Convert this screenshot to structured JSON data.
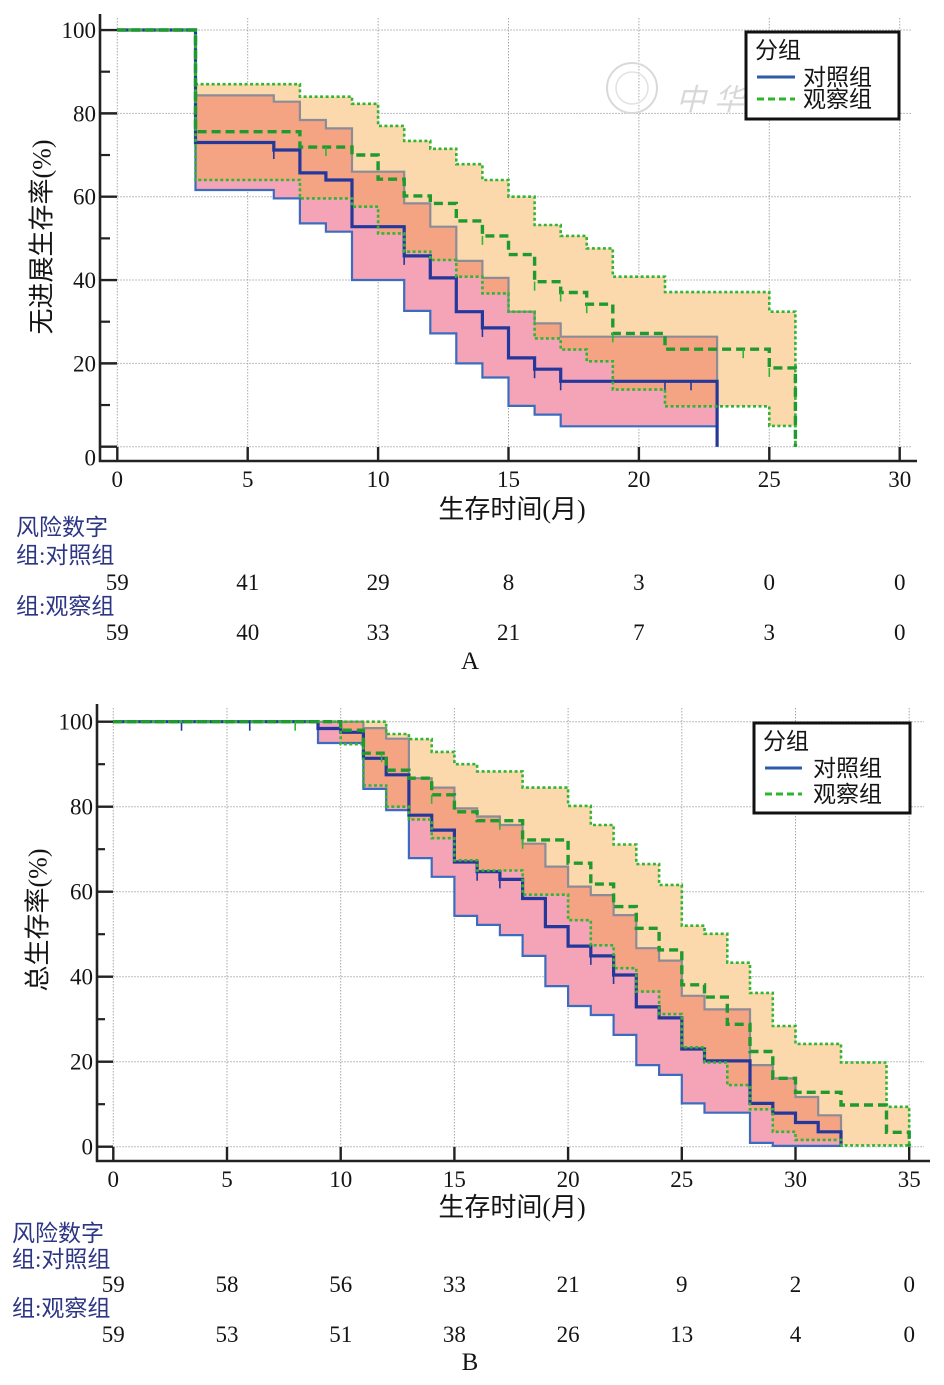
{
  "figure": {
    "watermark": "中华医"
  },
  "colors": {
    "control_median": "#24389c",
    "control_upper": "#8c8c96",
    "control_lower": "#3b6cc0",
    "observation_median": "#1f9a2e",
    "observation_ci": "#33b533",
    "control_band": "#f5a3b7",
    "observation_band": "#fcd9ad",
    "overlap_band": "#f4a483",
    "grid": "#a8a8a8",
    "axis": "#222222",
    "risk_label": "#2d3585"
  },
  "chart_data": [
    {
      "panel_label": "A",
      "type": "line",
      "subtype": "kaplan-meier step curves with confidence bands",
      "ylabel": "无进展生存率(%)",
      "xlabel": "生存时间(月)",
      "xlim": [
        0,
        30
      ],
      "ylim": [
        0,
        100
      ],
      "xticks": [
        0,
        5,
        10,
        15,
        20,
        25,
        30
      ],
      "yticks": [
        0,
        20,
        40,
        60,
        80,
        100
      ],
      "grid": true,
      "legend": {
        "title": "分组",
        "position": "top-right",
        "entries": [
          {
            "label": "对照组",
            "style": "solid"
          },
          {
            "label": "观察组",
            "style": "dashed"
          }
        ]
      },
      "series": [
        {
          "name": "对照组",
          "median": [
            [
              0,
              100
            ],
            [
              3,
              73.0
            ],
            [
              6,
              71.2
            ],
            [
              7,
              65.7
            ],
            [
              8,
              64.0
            ],
            [
              9,
              52.8
            ],
            [
              11,
              45.8
            ],
            [
              12,
              40.5
            ],
            [
              13,
              32.4
            ],
            [
              14,
              28.5
            ],
            [
              15,
              21.3
            ],
            [
              16,
              18.6
            ],
            [
              17,
              15.7
            ],
            [
              23,
              0
            ]
          ],
          "upper": [
            [
              0,
              100
            ],
            [
              3,
              84.3
            ],
            [
              6,
              82.8
            ],
            [
              7,
              78.4
            ],
            [
              8,
              76.4
            ],
            [
              9,
              66.0
            ],
            [
              11,
              58.4
            ],
            [
              12,
              52.8
            ],
            [
              13,
              44.6
            ],
            [
              14,
              40.5
            ],
            [
              15,
              32.4
            ],
            [
              16,
              29.6
            ],
            [
              17,
              26.4
            ],
            [
              23,
              15.7
            ]
          ],
          "lower": [
            [
              0,
              100
            ],
            [
              3,
              61.6
            ],
            [
              6,
              59.6
            ],
            [
              7,
              53.6
            ],
            [
              8,
              51.6
            ],
            [
              9,
              40.0
            ],
            [
              11,
              32.6
            ],
            [
              12,
              27.2
            ],
            [
              13,
              20.0
            ],
            [
              14,
              16.6
            ],
            [
              15,
              9.8
            ],
            [
              16,
              7.7
            ],
            [
              17,
              4.9
            ],
            [
              23,
              0
            ]
          ],
          "censored": [
            6,
            11,
            14,
            16,
            17,
            21,
            22
          ]
        },
        {
          "name": "观察组",
          "median": [
            [
              0,
              100
            ],
            [
              3,
              75.6
            ],
            [
              7,
              71.9
            ],
            [
              9,
              70.0
            ],
            [
              10,
              64.2
            ],
            [
              11,
              60.2
            ],
            [
              12,
              58.4
            ],
            [
              13,
              54.2
            ],
            [
              14,
              50.6
            ],
            [
              15,
              46.1
            ],
            [
              16,
              39.6
            ],
            [
              17,
              37.0
            ],
            [
              18,
              34.2
            ],
            [
              19,
              27.2
            ],
            [
              21,
              23.4
            ],
            [
              25,
              18.9
            ],
            [
              26,
              0
            ]
          ],
          "upper": [
            [
              0,
              100
            ],
            [
              3,
              87.0
            ],
            [
              7,
              84.0
            ],
            [
              9,
              82.3
            ],
            [
              10,
              77.0
            ],
            [
              11,
              73.4
            ],
            [
              12,
              71.5
            ],
            [
              13,
              67.8
            ],
            [
              14,
              64.0
            ],
            [
              15,
              60.0
            ],
            [
              16,
              53.2
            ],
            [
              17,
              50.6
            ],
            [
              18,
              47.6
            ],
            [
              19,
              40.8
            ],
            [
              21,
              37.1
            ],
            [
              25,
              32.4
            ],
            [
              26,
              0
            ]
          ],
          "lower": [
            [
              0,
              100
            ],
            [
              3,
              64.0
            ],
            [
              7,
              59.6
            ],
            [
              9,
              57.6
            ],
            [
              10,
              51.2
            ],
            [
              11,
              46.8
            ],
            [
              12,
              44.8
            ],
            [
              13,
              40.8
            ],
            [
              14,
              36.8
            ],
            [
              15,
              32.4
            ],
            [
              16,
              26.0
            ],
            [
              17,
              23.3
            ],
            [
              18,
              20.5
            ],
            [
              19,
              13.7
            ],
            [
              21,
              9.7
            ],
            [
              25,
              5.0
            ],
            [
              26,
              0
            ]
          ],
          "censored": [
            8,
            14,
            16,
            17,
            18,
            19,
            24,
            25
          ]
        }
      ],
      "risk_table": {
        "title": "风险数字",
        "rows": [
          {
            "label": "组:对照组",
            "values": [
              59,
              41,
              29,
              8,
              3,
              0,
              0
            ]
          },
          {
            "label": "组:观察组",
            "values": [
              59,
              40,
              33,
              21,
              7,
              3,
              0
            ]
          }
        ]
      }
    },
    {
      "panel_label": "B",
      "type": "line",
      "subtype": "kaplan-meier step curves with confidence bands",
      "ylabel": "总生存率(%)",
      "xlabel": "生存时间(月)",
      "xlim": [
        0,
        35
      ],
      "ylim": [
        0,
        100
      ],
      "xticks": [
        0,
        5,
        10,
        15,
        20,
        25,
        30,
        35
      ],
      "yticks": [
        0,
        20,
        40,
        60,
        80,
        100
      ],
      "grid": true,
      "legend": {
        "title": "分组",
        "position": "top-right",
        "entries": [
          {
            "label": "对照组",
            "style": "solid"
          },
          {
            "label": "观察组",
            "style": "dashed"
          }
        ]
      },
      "series": [
        {
          "name": "对照组",
          "median": [
            [
              0,
              100
            ],
            [
              9,
              98.4
            ],
            [
              10,
              97.5
            ],
            [
              11,
              91.4
            ],
            [
              12,
              87.5
            ],
            [
              13,
              78.0
            ],
            [
              14,
              74.5
            ],
            [
              15,
              67.0
            ],
            [
              16,
              64.7
            ],
            [
              17,
              62.9
            ],
            [
              18,
              58.4
            ],
            [
              19,
              51.8
            ],
            [
              20,
              47.2
            ],
            [
              21,
              44.9
            ],
            [
              22,
              40.4
            ],
            [
              23,
              32.9
            ],
            [
              24,
              30.3
            ],
            [
              25,
              23.0
            ],
            [
              26,
              20.2
            ],
            [
              28,
              10.2
            ],
            [
              29,
              7.9
            ],
            [
              30,
              5.7
            ],
            [
              31,
              3.5
            ],
            [
              32,
              0
            ]
          ],
          "upper": [
            [
              0,
              100
            ],
            [
              11,
              98.5
            ],
            [
              12,
              96.0
            ],
            [
              13,
              86.7
            ],
            [
              14,
              84.5
            ],
            [
              15,
              79.6
            ],
            [
              16,
              77.7
            ],
            [
              17,
              75.7
            ],
            [
              18,
              71.3
            ],
            [
              19,
              65.9
            ],
            [
              20,
              61.2
            ],
            [
              21,
              59.2
            ],
            [
              22,
              54.5
            ],
            [
              23,
              46.7
            ],
            [
              24,
              43.8
            ],
            [
              25,
              35.5
            ],
            [
              26,
              32.3
            ],
            [
              28,
              19.2
            ],
            [
              29,
              16.1
            ],
            [
              30,
              11.7
            ],
            [
              31,
              7.4
            ],
            [
              32,
              0
            ]
          ],
          "lower": [
            [
              0,
              100
            ],
            [
              9,
              95.0
            ],
            [
              11,
              84.2
            ],
            [
              12,
              79.2
            ],
            [
              13,
              67.9
            ],
            [
              14,
              63.5
            ],
            [
              15,
              54.3
            ],
            [
              16,
              52.2
            ],
            [
              17,
              49.8
            ],
            [
              18,
              44.9
            ],
            [
              19,
              37.8
            ],
            [
              20,
              33.1
            ],
            [
              21,
              31.0
            ],
            [
              22,
              26.3
            ],
            [
              23,
              19.2
            ],
            [
              24,
              16.9
            ],
            [
              25,
              10.2
            ],
            [
              26,
              8.0
            ],
            [
              28,
              0.9
            ],
            [
              29,
              0.2
            ],
            [
              32,
              0
            ]
          ],
          "censored": [
            3,
            6,
            16,
            17,
            21,
            22
          ]
        },
        {
          "name": "观察组",
          "median": [
            [
              0,
              100
            ],
            [
              10,
              98.0
            ],
            [
              11,
              92.6
            ],
            [
              12,
              88.6
            ],
            [
              13,
              86.7
            ],
            [
              14,
              82.8
            ],
            [
              15,
              78.8
            ],
            [
              16,
              76.7
            ],
            [
              18,
              72.2
            ],
            [
              20,
              66.7
            ],
            [
              21,
              61.8
            ],
            [
              22,
              56.5
            ],
            [
              23,
              51.4
            ],
            [
              24,
              46.3
            ],
            [
              25,
              38.1
            ],
            [
              26,
              35.2
            ],
            [
              27,
              28.8
            ],
            [
              28,
              22.4
            ],
            [
              29,
              16.1
            ],
            [
              30,
              12.8
            ],
            [
              32,
              9.8
            ],
            [
              34,
              3.4
            ],
            [
              35,
              0
            ]
          ],
          "upper": [
            [
              0,
              100
            ],
            [
              12,
              97.1
            ],
            [
              13,
              95.9
            ],
            [
              14,
              92.9
            ],
            [
              15,
              90.0
            ],
            [
              16,
              88.3
            ],
            [
              18,
              84.5
            ],
            [
              20,
              80.2
            ],
            [
              21,
              75.7
            ],
            [
              22,
              71.1
            ],
            [
              23,
              66.5
            ],
            [
              24,
              61.6
            ],
            [
              25,
              52.0
            ],
            [
              26,
              50.1
            ],
            [
              27,
              43.3
            ],
            [
              28,
              36.2
            ],
            [
              29,
              28.4
            ],
            [
              30,
              24.2
            ],
            [
              32,
              19.8
            ],
            [
              34,
              9.4
            ],
            [
              35,
              0
            ]
          ],
          "lower": [
            [
              0,
              100
            ],
            [
              10,
              94.7
            ],
            [
              11,
              85.0
            ],
            [
              12,
              80.0
            ],
            [
              13,
              77.0
            ],
            [
              14,
              72.6
            ],
            [
              15,
              67.4
            ],
            [
              16,
              65.0
            ],
            [
              18,
              59.3
            ],
            [
              20,
              53.3
            ],
            [
              21,
              47.4
            ],
            [
              22,
              42.0
            ],
            [
              23,
              36.5
            ],
            [
              24,
              31.2
            ],
            [
              25,
              23.4
            ],
            [
              26,
              19.8
            ],
            [
              27,
              14.5
            ],
            [
              28,
              8.8
            ],
            [
              29,
              3.5
            ],
            [
              30,
              1.6
            ],
            [
              32,
              0.3
            ],
            [
              35,
              0
            ]
          ],
          "censored": [
            8,
            11.8,
            14,
            17,
            18
          ]
        }
      ],
      "risk_table": {
        "title": "风险数字",
        "rows": [
          {
            "label": "组:对照组",
            "values": [
              59,
              58,
              56,
              33,
              21,
              9,
              2,
              0
            ]
          },
          {
            "label": "组:观察组",
            "values": [
              59,
              53,
              51,
              38,
              26,
              13,
              4,
              0
            ]
          }
        ]
      }
    }
  ]
}
